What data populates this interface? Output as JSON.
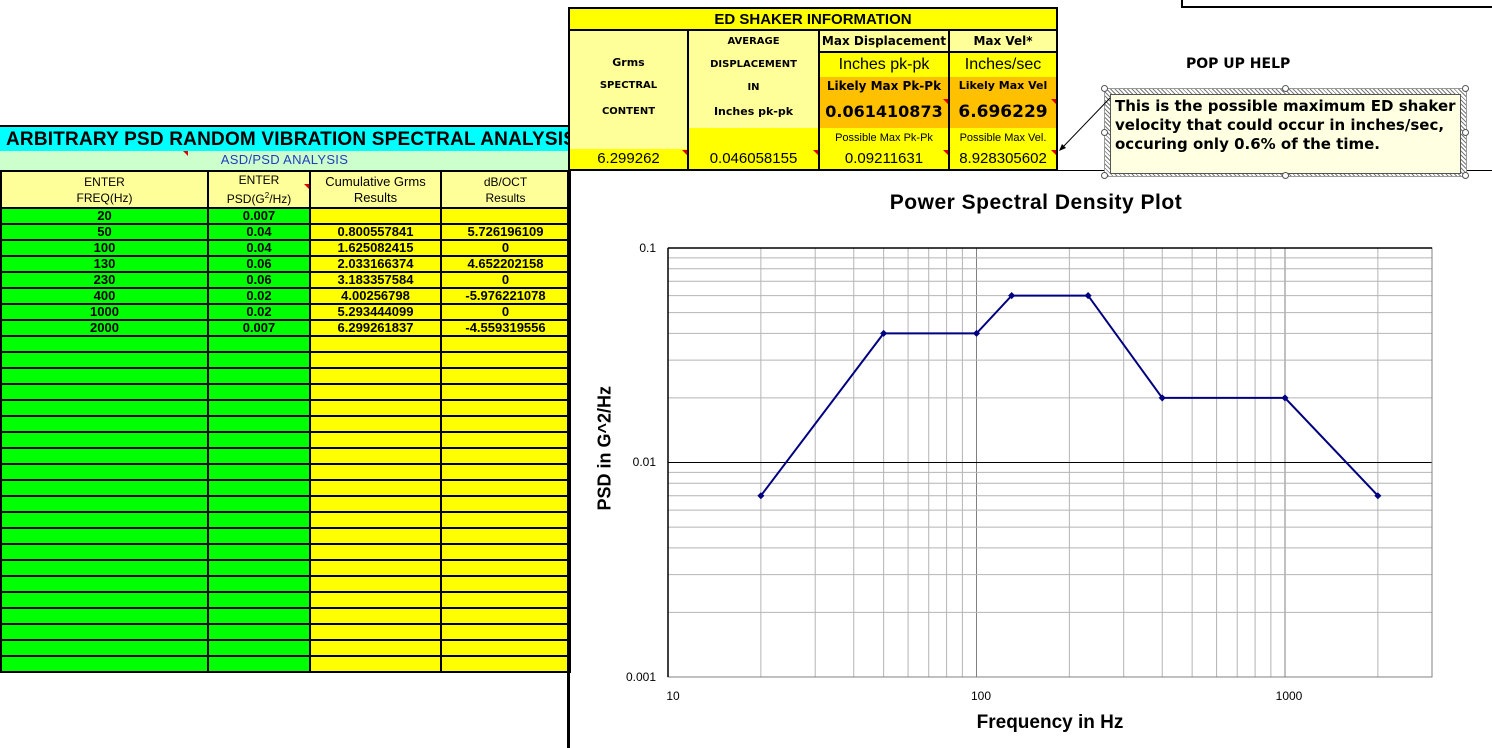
{
  "sheet": {
    "title": "ARBITRARY PSD RANDOM VIBRATION SPECTRAL ANALYSIS",
    "subtitle": "ASD/PSD ANALYSIS",
    "columns": [
      {
        "line1": "ENTER",
        "line2": "FREQ(Hz)"
      },
      {
        "line1": "ENTER",
        "line2_prefix": "PSD(G",
        "line2_sup": "2",
        "line2_suffix": "/Hz)"
      },
      {
        "line1": "Cumulative Grms",
        "line2": "Results"
      },
      {
        "line1": "dB/OCT",
        "line2": "Results"
      }
    ],
    "rows": [
      {
        "freq": "20",
        "psd": "0.007",
        "grms": "",
        "dboct": ""
      },
      {
        "freq": "50",
        "psd": "0.04",
        "grms": "0.800557841",
        "dboct": "5.726196109"
      },
      {
        "freq": "100",
        "psd": "0.04",
        "grms": "1.625082415",
        "dboct": "0"
      },
      {
        "freq": "130",
        "psd": "0.06",
        "grms": "2.033166374",
        "dboct": "4.652202158"
      },
      {
        "freq": "230",
        "psd": "0.06",
        "grms": "3.183357584",
        "dboct": "0"
      },
      {
        "freq": "400",
        "psd": "0.02",
        "grms": "4.00256798",
        "dboct": "-5.976221078"
      },
      {
        "freq": "1000",
        "psd": "0.02",
        "grms": "5.293444099",
        "dboct": "0"
      },
      {
        "freq": "2000",
        "psd": "0.007",
        "grms": "6.299261837",
        "dboct": "-4.559319556"
      }
    ],
    "empty_rows": 21,
    "colors": {
      "input": "#00ff00",
      "result": "#ffff00",
      "header": "#ffff99",
      "title_bg": "#00ffff",
      "subtitle_bg": "#ccffcc",
      "subtitle_fg": "#1f3fbf"
    }
  },
  "shaker": {
    "title": "ED SHAKER INFORMATION",
    "grms": {
      "l1": "Grms",
      "l2": "SPECTRAL",
      "l3": "CONTENT",
      "value": "6.299262"
    },
    "avg_disp": {
      "l1": "AVERAGE",
      "l2": "DISPLACEMENT",
      "l3": "IN",
      "l4": "Inches pk-pk",
      "value": "0.046058155"
    },
    "max_disp": {
      "header": "Max Displacement",
      "unit": "Inches pk-pk",
      "likely_label": "Likely Max Pk-Pk",
      "likely_value": "0.061410873",
      "possible_label": "Possible Max Pk-Pk",
      "possible_value": "0.09211631"
    },
    "max_vel": {
      "header": "Max Vel*",
      "unit": "Inches/sec",
      "likely_label": "Likely Max Vel",
      "likely_value": "6.696229",
      "possible_label": "Possible Max Vel.",
      "possible_value": "8.928305602"
    },
    "colors": {
      "yellow": "#ffff00",
      "pale": "#ffff99",
      "orange": "#ffc000"
    }
  },
  "popup": {
    "title": "POP UP HELP",
    "text": "This is the possible maximum ED shaker velocity that could occur in inches/sec, occuring only 0.6% of the time."
  },
  "chart_data": {
    "type": "line",
    "title": "Power Spectral Density Plot",
    "xlabel": "Frequency in Hz",
    "ylabel": "PSD in G^2/Hz",
    "xscale": "log",
    "yscale": "log",
    "xlim": [
      10,
      3000
    ],
    "ylim": [
      0.001,
      0.1
    ],
    "x_tick_labels": [
      "10",
      "100",
      "1000"
    ],
    "y_tick_labels": [
      "0.1",
      "0.01",
      "0.001"
    ],
    "grid": true,
    "legend": false,
    "series": [
      {
        "name": "PSD",
        "color": "#000080",
        "x": [
          20,
          50,
          100,
          130,
          230,
          400,
          1000,
          2000
        ],
        "values": [
          0.007,
          0.04,
          0.04,
          0.06,
          0.06,
          0.02,
          0.02,
          0.007
        ]
      }
    ]
  }
}
